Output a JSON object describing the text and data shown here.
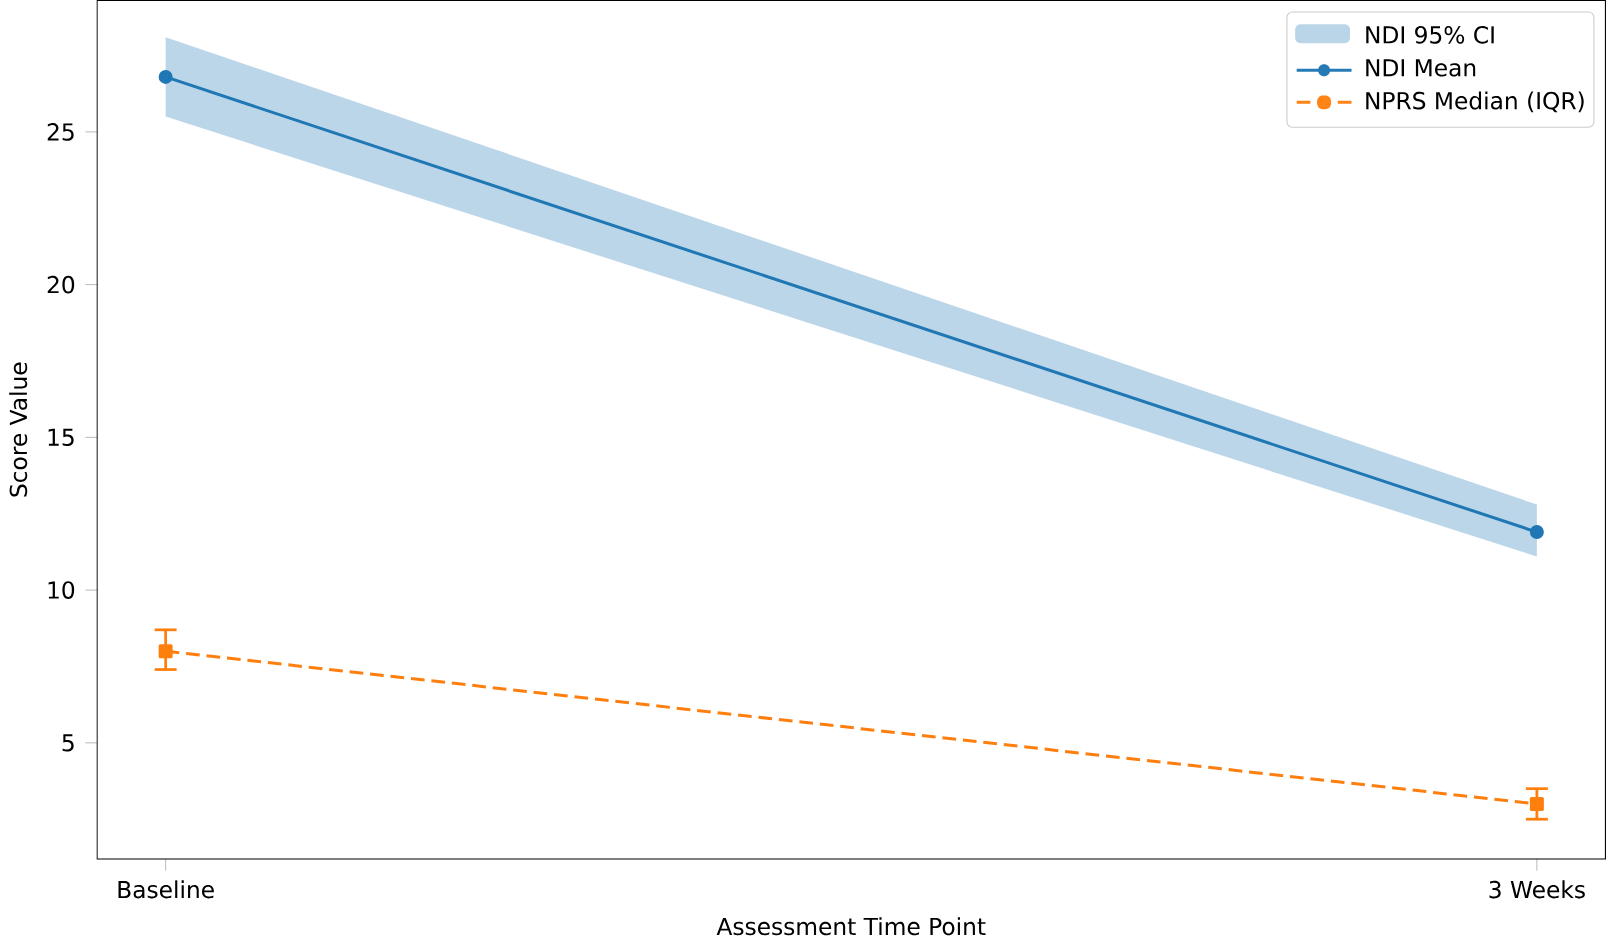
{
  "chart_data": {
    "type": "line",
    "xlabel": "Assessment Time Point",
    "ylabel": "Score Value",
    "categories": [
      "Baseline",
      "3 Weeks"
    ],
    "series": [
      {
        "name": "NDI Mean",
        "color": "#1f77b4",
        "values": [
          26.8,
          11.9
        ],
        "marker": "circle",
        "line_style": "solid",
        "lower": [
          25.5,
          11.1
        ],
        "upper": [
          28.1,
          12.8
        ]
      },
      {
        "name": "NPRS Median (IQR)",
        "color": "#ff7f0e",
        "values": [
          8.0,
          3.0
        ],
        "marker": "square",
        "line_style": "dashed",
        "errors": [
          [
            7.4,
            8.7
          ],
          [
            2.5,
            3.5
          ]
        ]
      }
    ],
    "annotations": [
      "NDI 95% CI"
    ],
    "ylim": [
      1.2,
      29.3
    ],
    "yticks": [
      5,
      10,
      15,
      20,
      25
    ],
    "legend": "top right"
  }
}
